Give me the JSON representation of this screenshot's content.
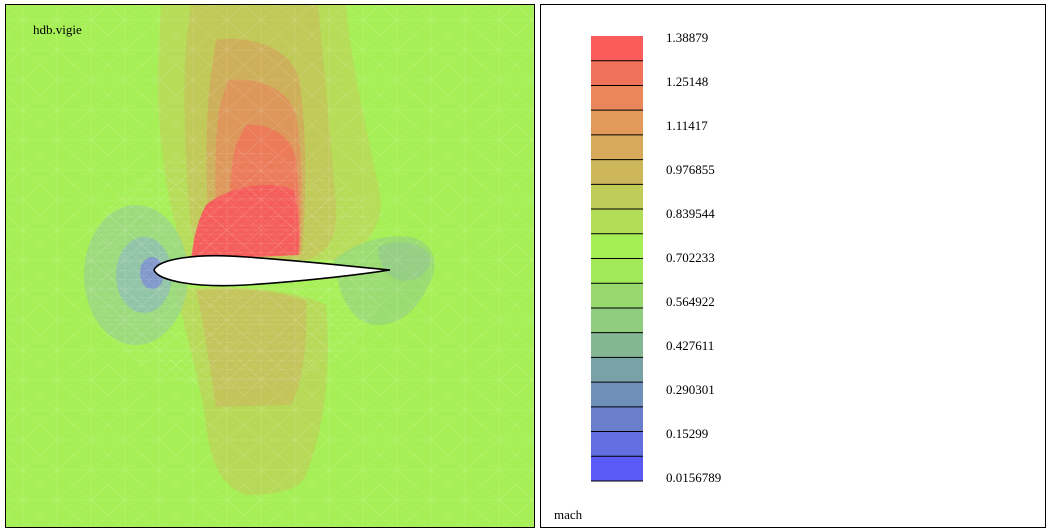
{
  "plot": {
    "title": "hdb.vigie",
    "background_color": "#a7ef56"
  },
  "legend": {
    "variable": "mach",
    "labels": [
      "1.38879",
      "1.25148",
      "1.11417",
      "0.976855",
      "0.839544",
      "0.702233",
      "0.564922",
      "0.427611",
      "0.290301",
      "0.15299",
      "0.0156789"
    ],
    "band_colors": [
      "#f95c5a",
      "#f1725a",
      "#e9865a",
      "#e19a5a",
      "#d8a95a",
      "#cdb75a",
      "#c1cb58",
      "#b3dd56",
      "#a5ee54",
      "#a2ea5a",
      "#98d86c",
      "#90cd7f",
      "#84b694",
      "#78a2a6",
      "#6f90b8",
      "#6a7fcc",
      "#646fdf",
      "#5a5af7"
    ]
  }
}
